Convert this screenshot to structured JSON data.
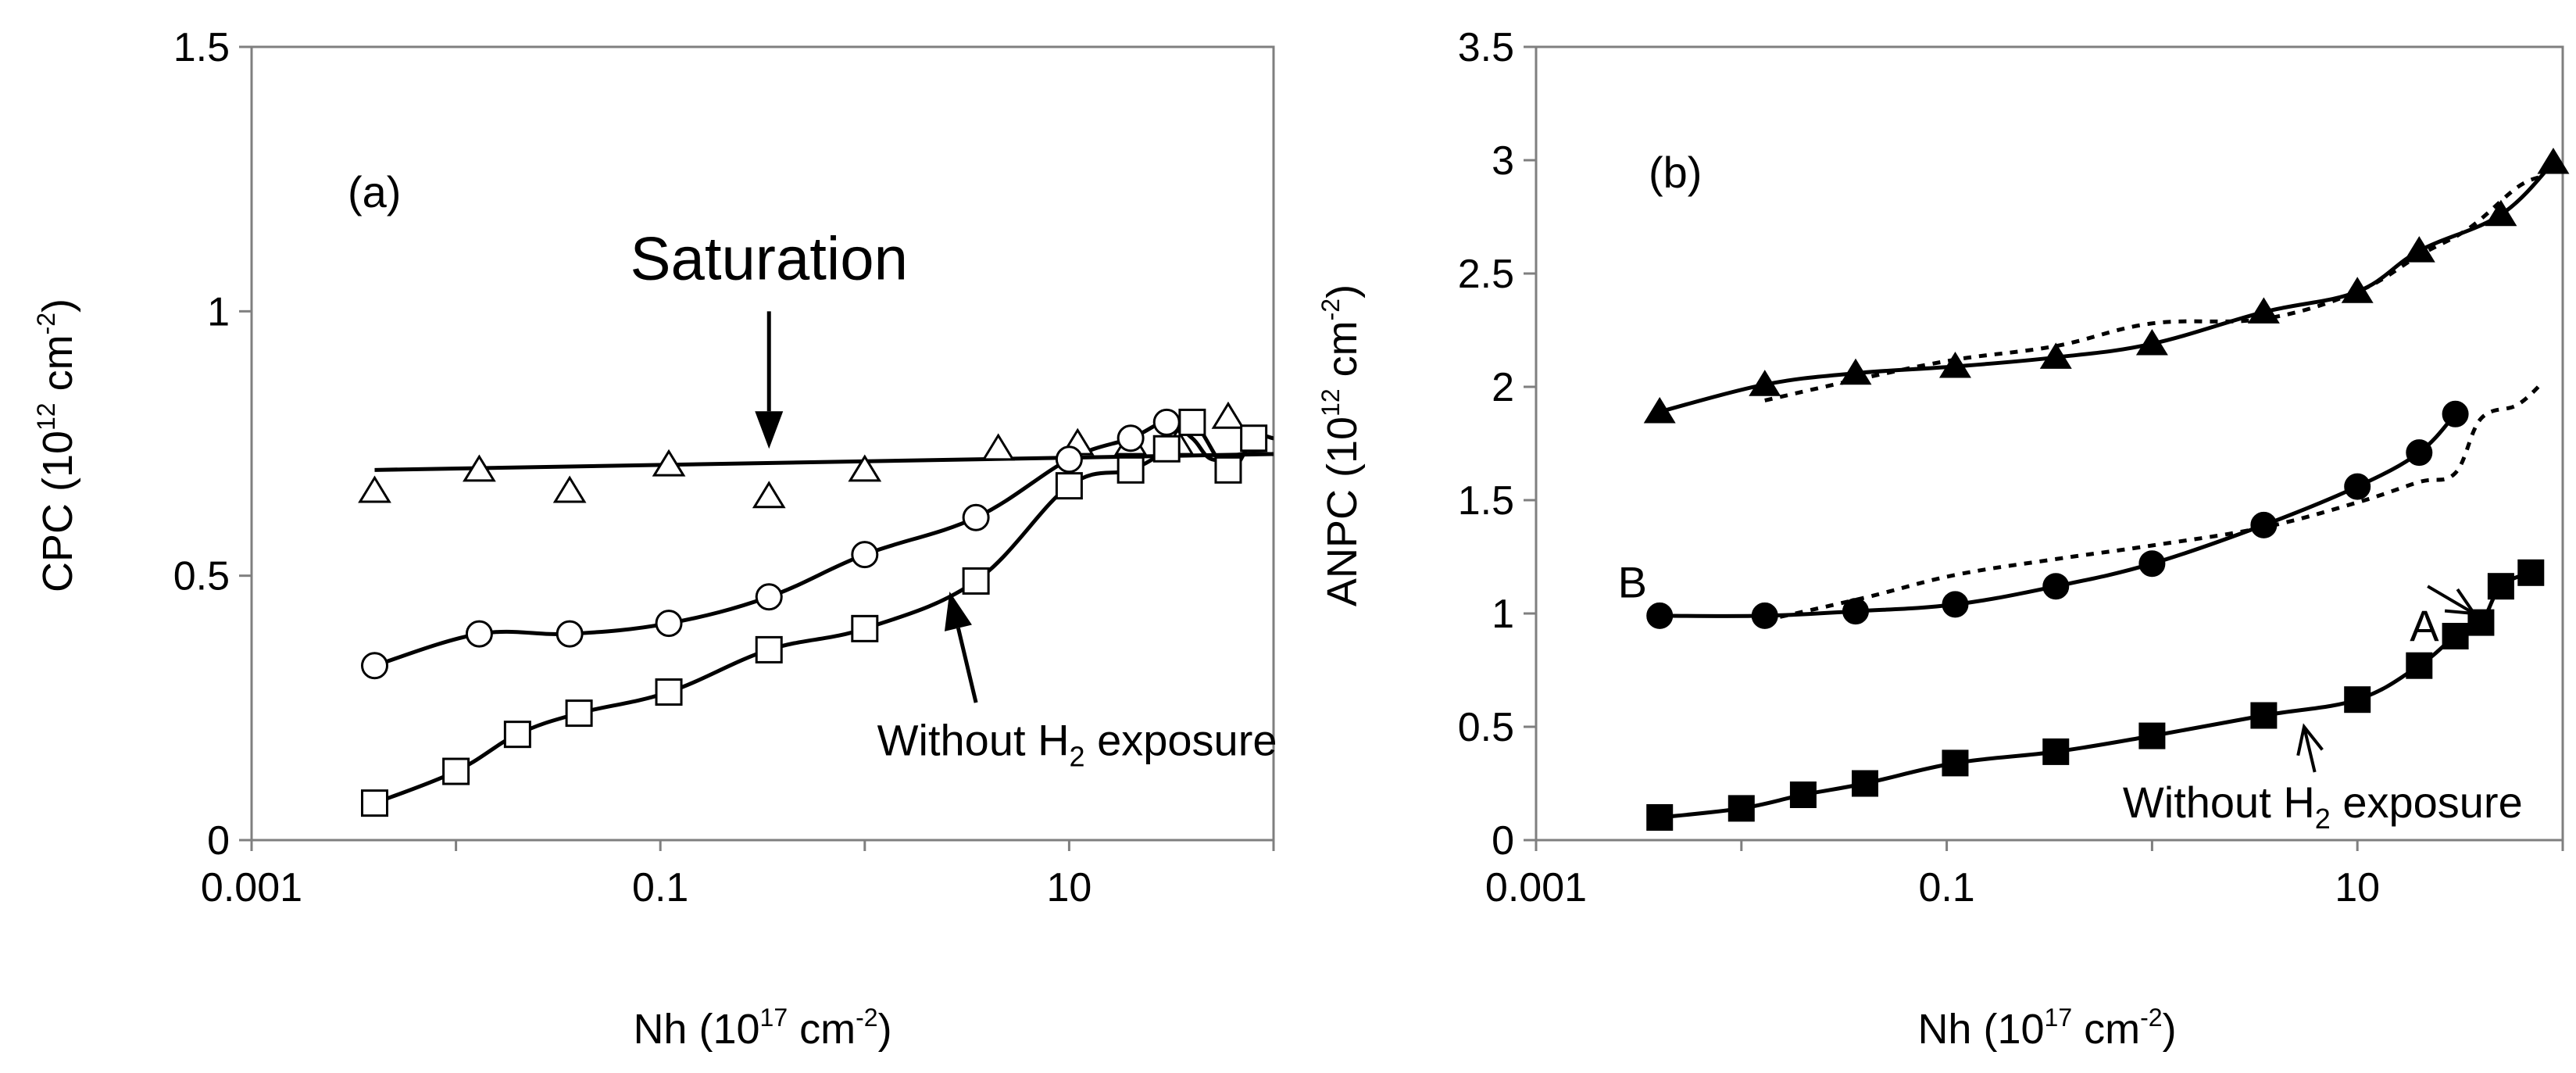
{
  "chart_data": [
    {
      "panel_label": "(a)",
      "type": "line",
      "x_scale": "log",
      "xlim": [
        0.001,
        100
      ],
      "ylim": [
        0,
        1.5
      ],
      "xticks": [
        "0.001",
        "0.1",
        "10"
      ],
      "yticks": [
        "0",
        "0.5",
        "1",
        "1.5"
      ],
      "xlabel": {
        "main": "Nh (10",
        "sup": "17",
        "mid": " cm",
        "sup2": "-2",
        "end": ")"
      },
      "ylabel": {
        "main": "CPC (10",
        "sup": "12",
        "mid": " cm",
        "sup2": "-2",
        "end": ")"
      },
      "series": [
        {
          "name": "triangles",
          "marker": "open-triangle",
          "x": [
            0.004,
            0.013,
            0.036,
            0.11,
            0.34,
            1.0,
            4.5,
            11,
            20,
            34,
            60
          ],
          "y": [
            0.66,
            0.7,
            0.66,
            0.71,
            0.65,
            0.7,
            0.74,
            0.75,
            0.75,
            0.75,
            0.8
          ],
          "fit": {
            "x": [
              0.004,
              100
            ],
            "y": [
              0.7,
              0.73
            ]
          }
        },
        {
          "name": "circles",
          "marker": "open-circle",
          "x": [
            0.004,
            0.013,
            0.036,
            0.11,
            0.34,
            1.0,
            3.5,
            10,
            20,
            30
          ],
          "y": [
            0.33,
            0.39,
            0.39,
            0.41,
            0.46,
            0.54,
            0.61,
            0.72,
            0.76,
            0.79
          ],
          "line": {
            "x": [
              0.004,
              0.013,
              0.036,
              0.11,
              0.34,
              1.0,
              3.5,
              10,
              20,
              30,
              40,
              50,
              70,
              100
            ],
            "y": [
              0.33,
              0.39,
              0.39,
              0.41,
              0.46,
              0.54,
              0.61,
              0.72,
              0.76,
              0.79,
              0.76,
              0.72,
              0.73,
              0.73
            ]
          }
        },
        {
          "name": "Without H2 exposure",
          "marker": "open-square",
          "x": [
            0.004,
            0.01,
            0.02,
            0.04,
            0.11,
            0.34,
            1.0,
            3.5,
            10,
            20,
            30,
            40,
            60,
            80
          ],
          "y": [
            0.07,
            0.13,
            0.2,
            0.24,
            0.28,
            0.36,
            0.4,
            0.49,
            0.67,
            0.7,
            0.74,
            0.79,
            0.7,
            0.76
          ],
          "line": {
            "x": [
              0.004,
              0.01,
              0.02,
              0.04,
              0.11,
              0.34,
              1.0,
              3.5,
              10,
              20,
              30,
              40,
              60,
              80,
              100
            ],
            "y": [
              0.07,
              0.13,
              0.2,
              0.24,
              0.28,
              0.36,
              0.4,
              0.49,
              0.67,
              0.7,
              0.74,
              0.79,
              0.7,
              0.76,
              0.76
            ]
          }
        }
      ],
      "annotations": [
        {
          "text": "(a)",
          "role": "panel"
        },
        {
          "text": "Saturation",
          "x": 0.34,
          "y": 1.06,
          "arrow_to": [
            0.34,
            0.74
          ],
          "arrow_from": [
            0.34,
            1.0
          ]
        },
        {
          "text": "Without H",
          "sub": "2",
          "tail": " exposure",
          "x": 1.15,
          "y": 0.16,
          "arrow_to": [
            2.6,
            0.47
          ],
          "arrow_from": [
            3.5,
            0.26
          ]
        }
      ]
    },
    {
      "panel_label": "(b)",
      "type": "line",
      "x_scale": "log",
      "xlim": [
        0.001,
        100
      ],
      "ylim": [
        0,
        3.5
      ],
      "xticks": [
        "0.001",
        "0.1",
        "10"
      ],
      "yticks": [
        "0",
        "0.5",
        "1",
        "1.5",
        "2",
        "2.5",
        "3",
        "3.5"
      ],
      "xlabel": {
        "main": "Nh (10",
        "sup": "17",
        "mid": " cm",
        "sup2": "-2",
        "end": ")"
      },
      "ylabel": {
        "main": "ANPC (10",
        "sup": "12",
        "mid": " cm",
        "sup2": "-2",
        "end": ")"
      },
      "series": [
        {
          "name": "triangles",
          "marker": "filled-triangle",
          "x": [
            0.004,
            0.013,
            0.036,
            0.11,
            0.34,
            1.0,
            3.5,
            10,
            20,
            50,
            90
          ],
          "y": [
            1.89,
            2.01,
            2.06,
            2.09,
            2.13,
            2.19,
            2.33,
            2.42,
            2.6,
            2.76,
            2.99
          ],
          "dotted": {
            "x": [
              0.013,
              0.04,
              0.11,
              0.34,
              1.0,
              3.5,
              10,
              20,
              35,
              60,
              80
            ],
            "y": [
              1.94,
              2.04,
              2.12,
              2.18,
              2.28,
              2.3,
              2.42,
              2.58,
              2.7,
              2.88,
              2.93
            ]
          }
        },
        {
          "name": "B",
          "marker": "filled-circle",
          "x": [
            0.004,
            0.013,
            0.036,
            0.11,
            0.34,
            1.0,
            3.5,
            10,
            20,
            30
          ],
          "y": [
            0.99,
            0.99,
            1.01,
            1.04,
            1.12,
            1.22,
            1.39,
            1.56,
            1.71,
            1.88
          ],
          "dotted": {
            "x": [
              0.013,
              0.04,
              0.11,
              0.34,
              1.0,
              3.5,
              10,
              20,
              30,
              40,
              60,
              80
            ],
            "y": [
              0.97,
              1.07,
              1.17,
              1.24,
              1.3,
              1.38,
              1.49,
              1.58,
              1.62,
              1.86,
              1.92,
              2.02
            ]
          }
        },
        {
          "name": "Without H2 exposure",
          "marker": "filled-square",
          "x": [
            0.004,
            0.01,
            0.02,
            0.04,
            0.11,
            0.34,
            1.0,
            3.5,
            10,
            20,
            30,
            40,
            50,
            70
          ],
          "y": [
            0.1,
            0.14,
            0.2,
            0.25,
            0.34,
            0.39,
            0.46,
            0.55,
            0.62,
            0.77,
            0.9,
            0.96,
            1.12,
            1.18
          ]
        }
      ],
      "annotations": [
        {
          "text": "(b)",
          "role": "panel"
        },
        {
          "text": "B",
          "x": 0.0025,
          "y": 1.07
        },
        {
          "text": "A",
          "x": 18,
          "y": 0.88,
          "arrow_to": [
            37,
            1.0
          ],
          "arrow_from": [
            22,
            1.12
          ]
        },
        {
          "text": "Without H",
          "sub": "2",
          "tail": " exposure",
          "x": 0.72,
          "y": 0.1,
          "arrow_to": [
            5.5,
            0.5
          ],
          "arrow_from": [
            6.2,
            0.3
          ]
        }
      ]
    }
  ]
}
